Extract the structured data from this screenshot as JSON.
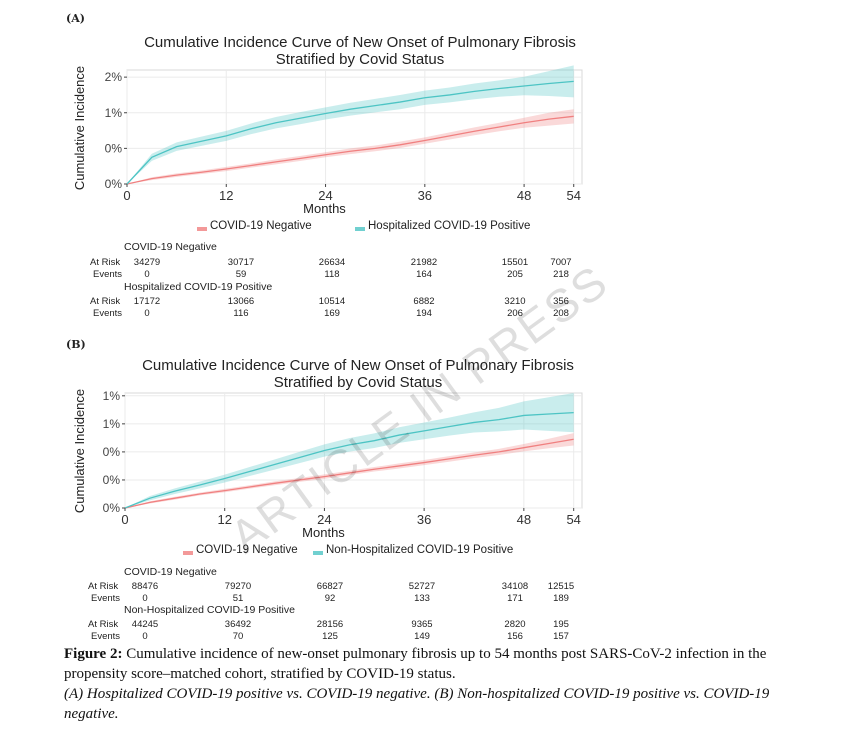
{
  "panels": [
    {
      "label": "(A)",
      "title_line1": "Cumulative Incidence Curve of New Onset of Pulmonary Fibrosis",
      "title_line2": "Stratified by Covid Status",
      "ylabel": "Cumulative Incidence",
      "xlabel": "Months",
      "legend": [
        "COVID-19 Negative",
        "Hospitalized COVID-19 Positive"
      ],
      "risk_table": {
        "group1": "COVID-19 Negative",
        "group2": "Hospitalized COVID-19 Positive",
        "at_risk_label": "At Risk",
        "events_label": "Events",
        "g1_at_risk": [
          "34279",
          "30717",
          "26634",
          "21982",
          "15501",
          "7007"
        ],
        "g1_events": [
          "0",
          "59",
          "118",
          "164",
          "205",
          "218"
        ],
        "g2_at_risk": [
          "17172",
          "13066",
          "10514",
          "6882",
          "3210",
          "356"
        ],
        "g2_events": [
          "0",
          "116",
          "169",
          "194",
          "206",
          "208"
        ]
      }
    },
    {
      "label": "(B)",
      "title_line1": "Cumulative Incidence Curve of New Onset of Pulmonary Fibrosis",
      "title_line2": "Stratified by Covid Status",
      "ylabel": "Cumulative Incidence",
      "xlabel": "Months",
      "legend": [
        "COVID-19 Negative",
        "Non-Hospitalized COVID-19 Positive"
      ],
      "risk_table": {
        "group1": "COVID-19 Negative",
        "group2": "Non-Hospitalized COVID-19 Positive",
        "at_risk_label": "At Risk",
        "events_label": "Events",
        "g1_at_risk": [
          "88476",
          "79270",
          "66827",
          "52727",
          "34108",
          "12515"
        ],
        "g1_events": [
          "0",
          "51",
          "92",
          "133",
          "171",
          "189"
        ],
        "g2_at_risk": [
          "44245",
          "36492",
          "28156",
          "9365",
          "2820",
          "195"
        ],
        "g2_events": [
          "0",
          "70",
          "125",
          "149",
          "156",
          "157"
        ]
      }
    }
  ],
  "watermark": "ARTICLE IN PRESS",
  "caption": {
    "fig_label": "Figure 2:",
    "text1": " Cumulative incidence of new-onset pulmonary fibrosis up to 54 months post SARS-CoV-2 infection in the propensity score–matched cohort, stratified by COVID-19 status.",
    "text2": "(A) Hospitalized COVID-19 positive vs. COVID-19 negative. (B) Non-hospitalized COVID-19 positive vs. COVID-19 negative."
  },
  "colors": {
    "negative": "#f08080",
    "positive": "#4dc4c4",
    "grid": "#ebebeb"
  },
  "chart_data": [
    {
      "type": "line",
      "xlabel": "Months",
      "ylabel": "Cumulative Incidence",
      "xlim": [
        0,
        55
      ],
      "ylim": [
        0,
        3.2
      ],
      "x_ticks": [
        0,
        12,
        24,
        36,
        48,
        54
      ],
      "y_tick_values": [
        0,
        1,
        2,
        3
      ],
      "y_tick_labels": [
        "0%",
        "0%",
        "1%",
        "2%"
      ],
      "grid": true,
      "legend_position": "bottom",
      "series": [
        {
          "name": "COVID-19 Negative",
          "x": [
            0,
            3,
            6,
            9,
            12,
            15,
            18,
            21,
            24,
            27,
            30,
            33,
            36,
            39,
            42,
            45,
            48,
            51,
            54
          ],
          "y": [
            0,
            0.15,
            0.25,
            0.33,
            0.42,
            0.52,
            0.62,
            0.72,
            0.82,
            0.92,
            1.0,
            1.1,
            1.22,
            1.35,
            1.48,
            1.6,
            1.72,
            1.82,
            1.9
          ],
          "ci": [
            0,
            0.04,
            0.05,
            0.05,
            0.06,
            0.06,
            0.07,
            0.07,
            0.07,
            0.08,
            0.08,
            0.09,
            0.09,
            0.1,
            0.11,
            0.12,
            0.14,
            0.18,
            0.2
          ]
        },
        {
          "name": "Hospitalized COVID-19 Positive",
          "x": [
            0,
            3,
            6,
            9,
            12,
            15,
            18,
            21,
            24,
            27,
            30,
            33,
            36,
            39,
            42,
            45,
            48,
            51,
            54
          ],
          "y": [
            0,
            0.75,
            1.05,
            1.2,
            1.35,
            1.55,
            1.72,
            1.85,
            1.98,
            2.1,
            2.2,
            2.3,
            2.42,
            2.5,
            2.6,
            2.68,
            2.75,
            2.82,
            2.88
          ],
          "ci": [
            0,
            0.1,
            0.12,
            0.13,
            0.14,
            0.15,
            0.16,
            0.17,
            0.17,
            0.18,
            0.19,
            0.2,
            0.2,
            0.21,
            0.22,
            0.23,
            0.26,
            0.35,
            0.45
          ]
        }
      ]
    },
    {
      "type": "line",
      "xlabel": "Months",
      "ylabel": "Cumulative Incidence",
      "xlim": [
        0,
        55
      ],
      "ylim": [
        0,
        4.1
      ],
      "x_ticks": [
        0,
        12,
        24,
        36,
        48,
        54
      ],
      "y_tick_values": [
        0,
        1,
        2,
        3,
        4
      ],
      "y_tick_labels": [
        "0%",
        "0%",
        "0%",
        "1%",
        "1%"
      ],
      "grid": true,
      "legend_position": "bottom",
      "series": [
        {
          "name": "COVID-19 Negative",
          "x": [
            0,
            3,
            6,
            9,
            12,
            15,
            18,
            21,
            24,
            27,
            30,
            33,
            36,
            39,
            42,
            45,
            48,
            51,
            54
          ],
          "y": [
            0,
            0.2,
            0.35,
            0.5,
            0.62,
            0.75,
            0.88,
            1.0,
            1.12,
            1.25,
            1.38,
            1.5,
            1.62,
            1.75,
            1.88,
            2.0,
            2.15,
            2.3,
            2.45
          ],
          "ci": [
            0,
            0.04,
            0.05,
            0.05,
            0.06,
            0.06,
            0.07,
            0.07,
            0.08,
            0.08,
            0.08,
            0.09,
            0.09,
            0.1,
            0.1,
            0.11,
            0.13,
            0.17,
            0.22
          ]
        },
        {
          "name": "Non-Hospitalized COVID-19 Positive",
          "x": [
            0,
            3,
            6,
            9,
            12,
            15,
            18,
            21,
            24,
            27,
            30,
            33,
            36,
            39,
            42,
            45,
            48,
            51,
            54
          ],
          "y": [
            0,
            0.35,
            0.6,
            0.82,
            1.05,
            1.3,
            1.55,
            1.8,
            2.05,
            2.25,
            2.4,
            2.6,
            2.75,
            2.9,
            3.05,
            3.15,
            3.3,
            3.35,
            3.4
          ],
          "ci": [
            0,
            0.08,
            0.1,
            0.12,
            0.14,
            0.16,
            0.18,
            0.2,
            0.22,
            0.24,
            0.26,
            0.28,
            0.3,
            0.32,
            0.36,
            0.42,
            0.5,
            0.6,
            0.7
          ]
        }
      ]
    }
  ]
}
